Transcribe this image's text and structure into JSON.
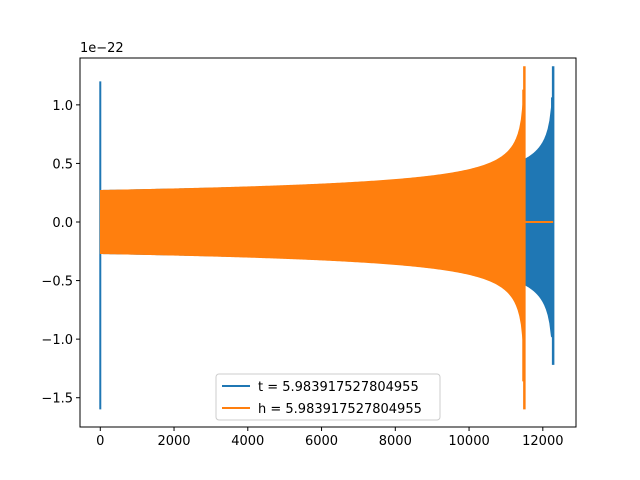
{
  "chart_data": {
    "type": "line",
    "title": "",
    "xlabel": "",
    "ylabel": "",
    "y_offset_label": "1e−22",
    "xlim": [
      -550,
      12900
    ],
    "ylim": [
      -1.75,
      1.4
    ],
    "x_ticks": [
      0,
      2000,
      4000,
      6000,
      8000,
      10000,
      12000
    ],
    "x_tick_labels": [
      "0",
      "2000",
      "4000",
      "6000",
      "8000",
      "10000",
      "12000"
    ],
    "y_ticks": [
      -1.5,
      -1.0,
      -0.5,
      0.0,
      0.5,
      1.0
    ],
    "y_tick_labels": [
      "−1.5",
      "−1.0",
      "−0.5",
      "0.0",
      "0.5",
      "1.0"
    ],
    "grid": false,
    "legend_position": "bottom-center",
    "series": [
      {
        "name": "t = 5.983917527804955",
        "color": "#1f77b4",
        "spike_x": 0,
        "spike_range": [
          -1.6,
          1.2
        ],
        "envelope_start_x": 0,
        "envelope_end_x": 11500,
        "envelope_start_amp": 0.27,
        "merger_x": 12280,
        "merger_range": [
          -1.22,
          1.33
        ]
      },
      {
        "name": "h = 5.983917527804955",
        "color": "#ff7f0e",
        "envelope_start_x": 0,
        "envelope_start_amp": 0.27,
        "merger_x": 11500,
        "merger_range": [
          -1.6,
          1.33
        ],
        "ringdown_end_x": 12280,
        "ringdown_value": 0.0
      }
    ]
  }
}
